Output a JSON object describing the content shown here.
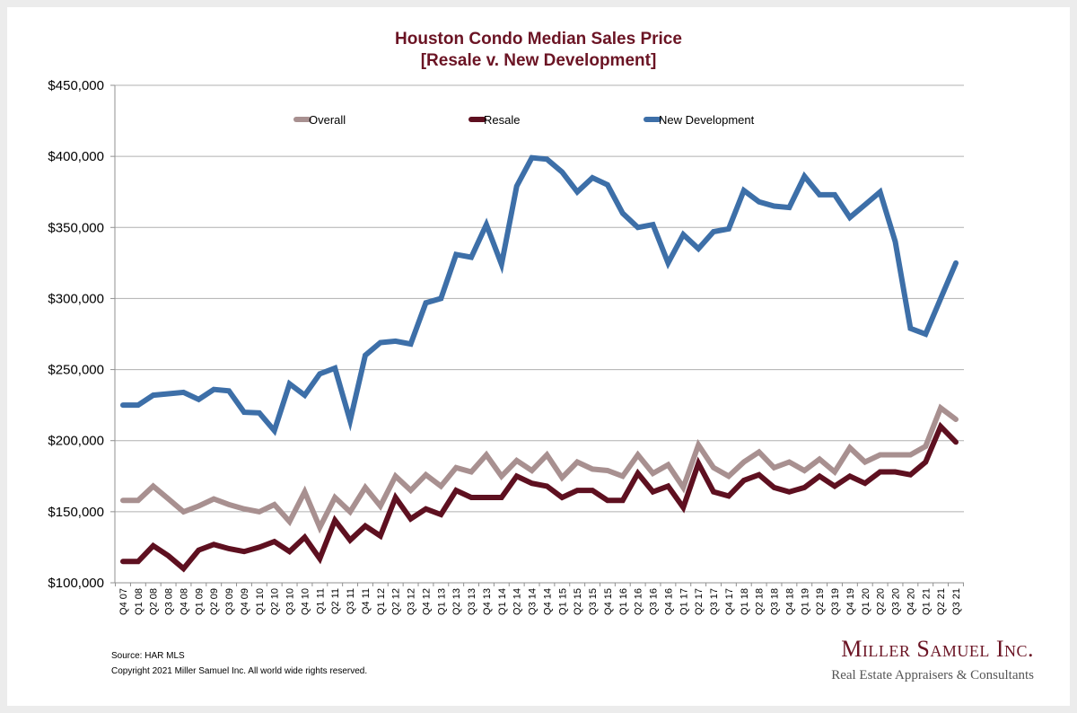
{
  "chart_data": {
    "type": "line",
    "title": "Houston Condo Median Sales Price",
    "subtitle": "[Resale v. New Development]",
    "xlabel": "",
    "ylabel": "",
    "ylim": [
      100000,
      450000
    ],
    "yticks": [
      100000,
      150000,
      200000,
      250000,
      300000,
      350000,
      400000,
      450000
    ],
    "ytick_labels": [
      "$100,000",
      "$150,000",
      "$200,000",
      "$250,000",
      "$300,000",
      "$350,000",
      "$400,000",
      "$450,000"
    ],
    "grid": true,
    "legend_position": "top",
    "categories": [
      "Q4 07",
      "Q1 08",
      "Q2 08",
      "Q3 08",
      "Q4 08",
      "Q1 09",
      "Q2 09",
      "Q3 09",
      "Q4 09",
      "Q1 10",
      "Q2 10",
      "Q3 10",
      "Q4 10",
      "Q1 11",
      "Q2 11",
      "Q3 11",
      "Q4 11",
      "Q1 12",
      "Q2 12",
      "Q3 12",
      "Q4 12",
      "Q1 13",
      "Q2 13",
      "Q3 13",
      "Q4 13",
      "Q1 14",
      "Q2 14",
      "Q3 14",
      "Q4 14",
      "Q1 15",
      "Q2 15",
      "Q3 15",
      "Q4 15",
      "Q1 16",
      "Q2 16",
      "Q3 16",
      "Q4 16",
      "Q1 17",
      "Q2 17",
      "Q3 17",
      "Q4 17",
      "Q1 18",
      "Q2 18",
      "Q3 18",
      "Q4 18",
      "Q1 19",
      "Q2 19",
      "Q3 19",
      "Q4 19",
      "Q1 20",
      "Q2 20",
      "Q3 20",
      "Q4 20",
      "Q1 21",
      "Q2 21",
      "Q3 21"
    ],
    "series": [
      {
        "name": "Overall",
        "color": "#a89090",
        "values": [
          158000,
          158000,
          168000,
          159000,
          150000,
          154000,
          159000,
          155000,
          152000,
          150000,
          155000,
          143000,
          164000,
          139000,
          160000,
          150000,
          167000,
          154000,
          175000,
          165000,
          176000,
          168000,
          181000,
          178000,
          190000,
          175000,
          186000,
          179000,
          190000,
          174000,
          185000,
          180000,
          179000,
          175000,
          190000,
          177000,
          183000,
          167000,
          197000,
          181000,
          175000,
          185000,
          192000,
          181000,
          185000,
          179000,
          187000,
          178000,
          195000,
          185000,
          190000,
          190000,
          190000,
          196000,
          223000,
          215000
        ]
      },
      {
        "name": "Resale",
        "color": "#5e1020",
        "values": [
          115000,
          115000,
          126000,
          119000,
          110000,
          123000,
          127000,
          124000,
          122000,
          125000,
          129000,
          122000,
          132000,
          117000,
          144000,
          130000,
          140000,
          133000,
          160000,
          145000,
          152000,
          148000,
          165000,
          160000,
          160000,
          160000,
          175000,
          170000,
          168000,
          160000,
          165000,
          165000,
          158000,
          158000,
          177000,
          164000,
          168000,
          153000,
          184000,
          164000,
          161000,
          172000,
          176000,
          167000,
          164000,
          167000,
          175000,
          168000,
          175000,
          170000,
          178000,
          178000,
          176000,
          185000,
          210000,
          199000
        ]
      },
      {
        "name": "New Development",
        "color": "#3d6fa8",
        "values": [
          225000,
          225000,
          232000,
          233000,
          234000,
          229000,
          236000,
          235000,
          220000,
          219500,
          207000,
          240000,
          232000,
          247000,
          251000,
          214000,
          260000,
          269000,
          270000,
          268000,
          297000,
          300000,
          331000,
          329000,
          352000,
          324000,
          379000,
          399000,
          398000,
          389000,
          375000,
          385000,
          380000,
          360000,
          350000,
          352000,
          325000,
          345000,
          335000,
          347000,
          349000,
          376000,
          368000,
          365000,
          364000,
          386000,
          373000,
          373000,
          357000,
          366000,
          375000,
          340000,
          279000,
          275000,
          300000,
          325000
        ]
      }
    ]
  },
  "footer": {
    "source": "Source: HAR MLS",
    "copyright": "Copyright 2021 Miller Samuel Inc.  All world wide rights reserved."
  },
  "brand": {
    "name": "Miller Samuel Inc.",
    "tagline": "Real Estate Appraisers & Consultants"
  }
}
